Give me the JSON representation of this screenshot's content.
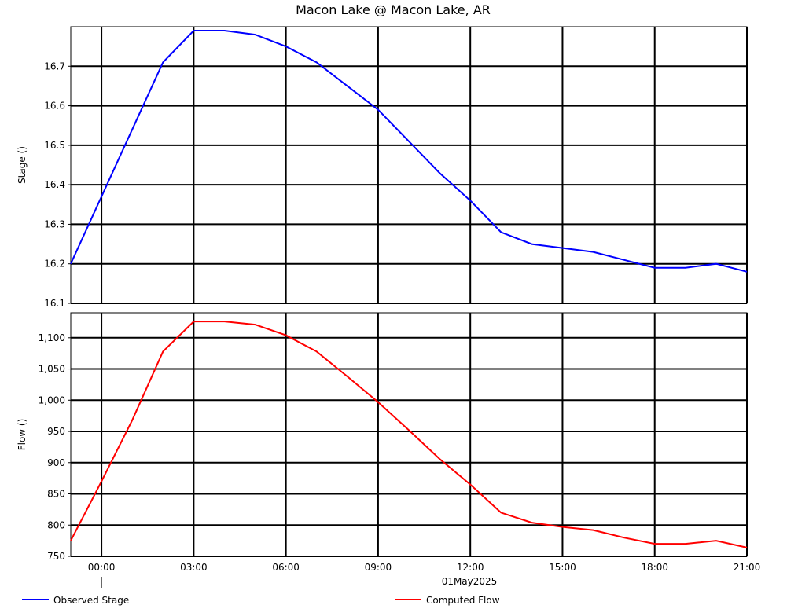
{
  "chart_data": {
    "type": "line",
    "title": "Macon Lake @ Macon Lake, AR",
    "date_label": "01May2025",
    "x_ticks": [
      "00:00",
      "03:00",
      "06:00",
      "09:00",
      "12:00",
      "15:00",
      "18:00",
      "21:00"
    ],
    "x_hours": [
      -1,
      0,
      1,
      2,
      3,
      4,
      5,
      6,
      7,
      8,
      9,
      10,
      11,
      12,
      13,
      14,
      15,
      16,
      17,
      18,
      19,
      20,
      21
    ],
    "panels": [
      {
        "ylabel": "Stage ()",
        "ylim": [
          16.1,
          16.8
        ],
        "y_ticks": [
          16.1,
          16.2,
          16.3,
          16.4,
          16.5,
          16.6,
          16.7
        ],
        "y_tick_labels": [
          "16.1",
          "16.2",
          "16.3",
          "16.4",
          "16.5",
          "16.6",
          "16.7"
        ],
        "series": [
          {
            "name": "Observed Stage",
            "color": "#0000ff",
            "values": [
              16.2,
              16.37,
              16.54,
              16.71,
              16.79,
              16.79,
              16.78,
              16.75,
              16.71,
              16.65,
              16.59,
              16.51,
              16.43,
              16.36,
              16.28,
              16.25,
              16.24,
              16.23,
              16.21,
              16.19,
              16.19,
              16.2,
              16.18
            ]
          }
        ]
      },
      {
        "ylabel": "Flow ()",
        "ylim": [
          750,
          1140
        ],
        "y_ticks": [
          750,
          800,
          850,
          900,
          950,
          1000,
          1050,
          1100
        ],
        "y_tick_labels": [
          "750",
          "800",
          "850",
          "900",
          "950",
          "1,000",
          "1,050",
          "1,100"
        ],
        "series": [
          {
            "name": "Computed Flow",
            "color": "#ff0000",
            "values": [
              775,
              870,
              968,
              1078,
              1126,
              1126,
              1121,
              1104,
              1078,
              1038,
              997,
              952,
              906,
              865,
              820,
              804,
              797,
              792,
              780,
              770,
              770,
              775,
              764
            ]
          }
        ]
      }
    ],
    "legend": [
      {
        "name": "Observed Stage",
        "color": "#0000ff"
      },
      {
        "name": "Computed Flow",
        "color": "#ff0000"
      }
    ],
    "grid": true,
    "legend_position": "bottom"
  }
}
